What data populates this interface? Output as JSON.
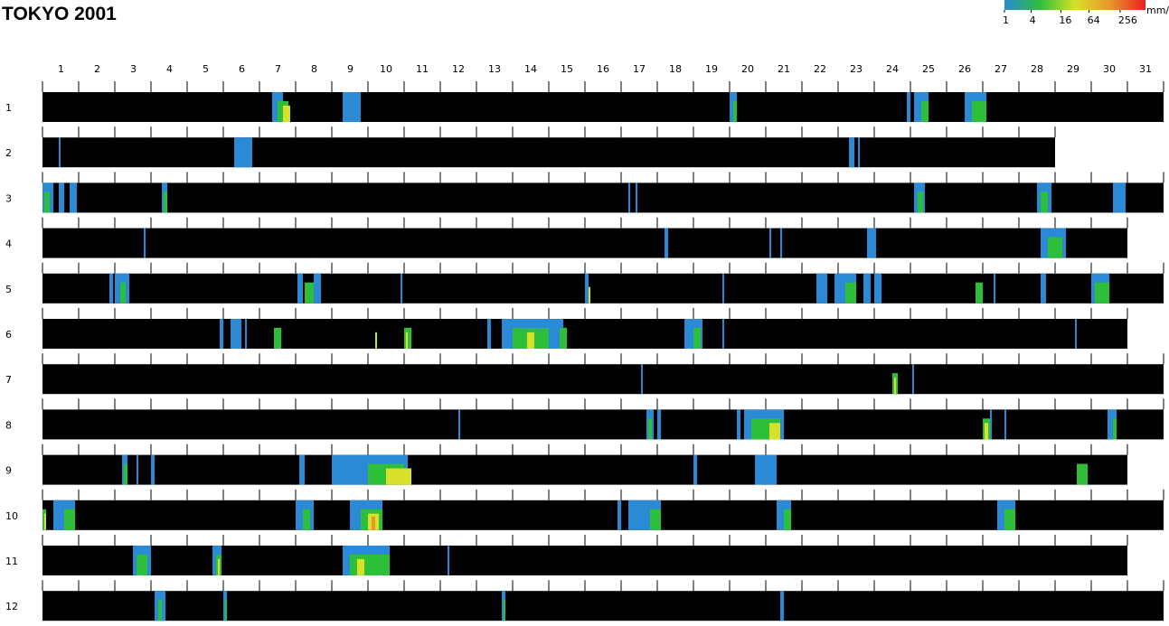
{
  "chart_data": {
    "type": "heatmap",
    "title": "TOKYO  2001",
    "x_axis": {
      "tick_labels": [
        "1",
        "2",
        "3",
        "4",
        "5",
        "6",
        "7",
        "8",
        "9",
        "10",
        "11",
        "12",
        "13",
        "14",
        "15",
        "16",
        "17",
        "18",
        "19",
        "20",
        "21",
        "22",
        "23",
        "24",
        "25",
        "26",
        "27",
        "28",
        "29",
        "30",
        "31"
      ]
    },
    "y_axis": {
      "tick_labels": [
        "1",
        "2",
        "3",
        "4",
        "5",
        "6",
        "7",
        "8",
        "9",
        "10",
        "11",
        "12"
      ]
    },
    "days_in_month": [
      31,
      28,
      31,
      30,
      31,
      30,
      31,
      31,
      30,
      31,
      30,
      31
    ],
    "legend": {
      "unit": "mm/h",
      "tick_labels": [
        "1",
        "4",
        "16",
        "64",
        "256"
      ],
      "colors": [
        "#2a8ad6",
        "#2dbf3a",
        "#d8e02a",
        "#e8962a",
        "#e82020"
      ]
    },
    "colors": {
      "background": "#000000",
      "levels": {
        "1": "#2a8ad6",
        "2": "#2dbf3a",
        "3": "#d8e02a",
        "4": "#e8962a",
        "5": "#e82020"
      }
    },
    "rain_periods": [
      {
        "month": 1,
        "events": [
          [
            7.35,
            0.3,
            1
          ],
          [
            7.5,
            0.3,
            2
          ],
          [
            7.65,
            0.2,
            3
          ],
          [
            9.3,
            0.5,
            1
          ],
          [
            20.0,
            0.2,
            1
          ],
          [
            20.1,
            0.1,
            2
          ],
          [
            24.9,
            0.1,
            1
          ],
          [
            25.1,
            0.4,
            1
          ],
          [
            25.3,
            0.2,
            2
          ],
          [
            26.5,
            0.6,
            1
          ],
          [
            26.7,
            0.4,
            2
          ]
        ]
      },
      {
        "month": 2,
        "events": [
          [
            1.45,
            0.05,
            1
          ],
          [
            6.3,
            0.3,
            1
          ],
          [
            6.6,
            0.2,
            1
          ],
          [
            23.3,
            0.15,
            1
          ],
          [
            23.55,
            0.05,
            1
          ]
        ]
      },
      {
        "month": 3,
        "events": [
          [
            1.0,
            0.3,
            1
          ],
          [
            1.05,
            0.15,
            2
          ],
          [
            1.45,
            0.15,
            1
          ],
          [
            1.75,
            0.2,
            1
          ],
          [
            4.3,
            0.15,
            1
          ],
          [
            4.35,
            0.1,
            2
          ],
          [
            17.2,
            0.05,
            1
          ],
          [
            17.4,
            0.05,
            1
          ],
          [
            25.1,
            0.3,
            1
          ],
          [
            25.2,
            0.15,
            2
          ],
          [
            28.5,
            0.4,
            1
          ],
          [
            28.6,
            0.2,
            2
          ],
          [
            30.6,
            0.35,
            1
          ]
        ]
      },
      {
        "month": 4,
        "events": [
          [
            3.8,
            0.05,
            1
          ],
          [
            18.2,
            0.1,
            1
          ],
          [
            21.1,
            0.05,
            1
          ],
          [
            21.4,
            0.05,
            1
          ],
          [
            23.8,
            0.25,
            1
          ],
          [
            28.6,
            0.7,
            1
          ],
          [
            28.8,
            0.4,
            2
          ]
        ]
      },
      {
        "month": 5,
        "events": [
          [
            2.85,
            0.1,
            1
          ],
          [
            3.0,
            0.4,
            1
          ],
          [
            3.15,
            0.15,
            2
          ],
          [
            8.05,
            0.15,
            1
          ],
          [
            8.25,
            0.3,
            2
          ],
          [
            8.5,
            0.2,
            1
          ],
          [
            10.9,
            0.05,
            1
          ],
          [
            16.0,
            0.1,
            1
          ],
          [
            16.1,
            0.05,
            3
          ],
          [
            19.8,
            0.05,
            1
          ],
          [
            22.4,
            0.3,
            1
          ],
          [
            22.9,
            0.6,
            1
          ],
          [
            23.2,
            0.3,
            2
          ],
          [
            23.7,
            0.2,
            1
          ],
          [
            24.0,
            0.2,
            1
          ],
          [
            26.8,
            0.2,
            2
          ],
          [
            27.3,
            0.05,
            1
          ],
          [
            28.6,
            0.15,
            1
          ],
          [
            30.0,
            0.5,
            1
          ],
          [
            30.1,
            0.4,
            2
          ]
        ]
      },
      {
        "month": 6,
        "events": [
          [
            5.9,
            0.1,
            1
          ],
          [
            6.2,
            0.3,
            1
          ],
          [
            6.6,
            0.05,
            1
          ],
          [
            7.4,
            0.2,
            2
          ],
          [
            10.2,
            0.05,
            3
          ],
          [
            11.0,
            0.2,
            2
          ],
          [
            11.05,
            0.05,
            3
          ],
          [
            13.3,
            0.1,
            1
          ],
          [
            13.7,
            1.7,
            1
          ],
          [
            14.0,
            1.0,
            2
          ],
          [
            14.4,
            0.2,
            3
          ],
          [
            15.0,
            0.4,
            1
          ],
          [
            15.3,
            0.2,
            2
          ],
          [
            18.75,
            0.5,
            1
          ],
          [
            19.0,
            0.2,
            2
          ],
          [
            19.8,
            0.05,
            1
          ],
          [
            29.55,
            0.05,
            1
          ]
        ]
      },
      {
        "month": 7,
        "events": [
          [
            17.55,
            0.05,
            1
          ],
          [
            24.5,
            0.15,
            2
          ],
          [
            24.55,
            0.05,
            3
          ],
          [
            25.05,
            0.05,
            1
          ]
        ]
      },
      {
        "month": 8,
        "events": [
          [
            12.5,
            0.05,
            1
          ],
          [
            17.7,
            0.2,
            1
          ],
          [
            17.75,
            0.1,
            2
          ],
          [
            18.0,
            0.1,
            1
          ],
          [
            20.2,
            0.1,
            1
          ],
          [
            20.4,
            1.1,
            1
          ],
          [
            20.6,
            0.8,
            2
          ],
          [
            21.1,
            0.3,
            3
          ],
          [
            27.0,
            0.2,
            2
          ],
          [
            27.05,
            0.1,
            3
          ],
          [
            27.2,
            0.05,
            1
          ],
          [
            27.6,
            0.05,
            1
          ],
          [
            30.45,
            0.25,
            1
          ],
          [
            30.6,
            0.1,
            2
          ]
        ]
      },
      {
        "month": 9,
        "events": [
          [
            3.2,
            0.15,
            1
          ],
          [
            3.25,
            0.1,
            2
          ],
          [
            3.6,
            0.05,
            1
          ],
          [
            4.0,
            0.1,
            1
          ],
          [
            8.1,
            0.15,
            1
          ],
          [
            9.0,
            0.2,
            1
          ],
          [
            9.2,
            1.9,
            1
          ],
          [
            10.0,
            1.0,
            2
          ],
          [
            10.5,
            0.6,
            3
          ],
          [
            11.0,
            0.2,
            3
          ],
          [
            19.0,
            0.1,
            1
          ],
          [
            20.7,
            0.6,
            1
          ],
          [
            29.6,
            0.3,
            2
          ]
        ]
      },
      {
        "month": 10,
        "events": [
          [
            1.0,
            0.1,
            2
          ],
          [
            1.05,
            0.05,
            3
          ],
          [
            1.3,
            0.6,
            1
          ],
          [
            1.6,
            0.3,
            2
          ],
          [
            8.0,
            0.5,
            1
          ],
          [
            8.2,
            0.2,
            2
          ],
          [
            9.5,
            0.9,
            1
          ],
          [
            9.8,
            0.6,
            2
          ],
          [
            10.0,
            0.3,
            3
          ],
          [
            10.1,
            0.1,
            4
          ],
          [
            16.9,
            0.1,
            1
          ],
          [
            17.2,
            0.4,
            1
          ],
          [
            17.6,
            0.5,
            1
          ],
          [
            17.8,
            0.3,
            2
          ],
          [
            21.3,
            0.4,
            1
          ],
          [
            21.5,
            0.2,
            2
          ],
          [
            27.4,
            0.5,
            1
          ],
          [
            27.6,
            0.3,
            2
          ]
        ]
      },
      {
        "month": 11,
        "events": [
          [
            3.5,
            0.5,
            1
          ],
          [
            3.6,
            0.3,
            2
          ],
          [
            5.7,
            0.25,
            1
          ],
          [
            5.8,
            0.15,
            2
          ],
          [
            5.85,
            0.05,
            3
          ],
          [
            9.3,
            1.3,
            1
          ],
          [
            9.5,
            1.1,
            2
          ],
          [
            9.7,
            0.2,
            3
          ],
          [
            12.2,
            0.05,
            1
          ]
        ]
      },
      {
        "month": 12,
        "events": [
          [
            4.1,
            0.3,
            1
          ],
          [
            4.2,
            0.1,
            2
          ],
          [
            6.0,
            0.1,
            1
          ],
          [
            6.05,
            0.05,
            2
          ],
          [
            13.7,
            0.1,
            1
          ],
          [
            13.75,
            0.05,
            2
          ],
          [
            21.4,
            0.1,
            1
          ]
        ]
      }
    ]
  }
}
